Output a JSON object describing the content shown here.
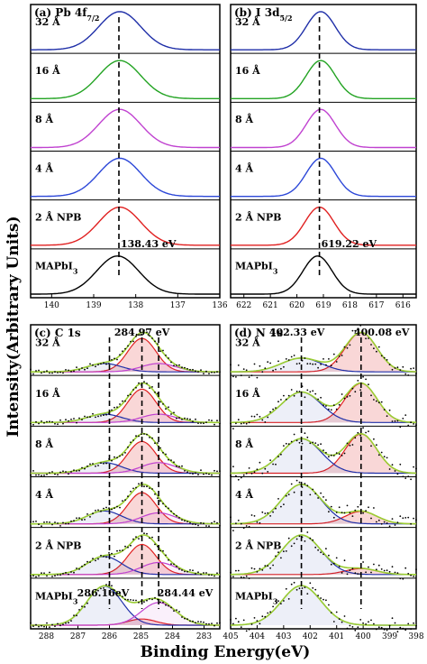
{
  "figure": {
    "ylabel": "Intensity(Arbitrary Units)",
    "xlabel": "Binding Energy(eV)"
  },
  "chart_data": [
    {
      "type": "line",
      "panel": "a",
      "title": "(a) Pb 4f",
      "title_sub": "7/2",
      "xlim": [
        140.5,
        136
      ],
      "x_ticks": [
        140,
        139,
        138,
        137,
        136
      ],
      "row_labels": [
        "32 Å",
        "16 Å",
        "8 Å",
        "4 Å",
        "2 Å NPB",
        "MAPbI3"
      ],
      "peak_positions": [
        138.38,
        138.38,
        138.38,
        138.38,
        138.38,
        138.43
      ],
      "peak_width": 0.5,
      "colors": [
        "#1f2fa8",
        "#22a322",
        "#c042d0",
        "#2c47d8",
        "#e02020",
        "#000000"
      ],
      "dashed_line_x": 138.4,
      "annotation": {
        "text": "138.43 eV",
        "x": 138.4
      }
    },
    {
      "type": "line",
      "panel": "b",
      "title": "(b) I 3d",
      "title_sub": "5/2",
      "xlim": [
        622.5,
        615.5
      ],
      "x_ticks": [
        622,
        621,
        620,
        619,
        618,
        617,
        616
      ],
      "row_labels": [
        "32 Å",
        "16 Å",
        "8 Å",
        "4 Å",
        "2 Å NPB",
        "MAPbI3"
      ],
      "peak_positions": [
        619.1,
        619.1,
        619.1,
        619.1,
        619.15,
        619.22
      ],
      "peak_width": 0.55,
      "colors": [
        "#1f2fa8",
        "#22a322",
        "#c042d0",
        "#2c47d8",
        "#e02020",
        "#000000"
      ],
      "dashed_line_x": 619.15,
      "annotation": {
        "text": "619.22 eV",
        "x": 619.15
      }
    },
    {
      "type": "line",
      "panel": "c",
      "title": "(c) C 1s",
      "xlim": [
        288.5,
        282.5
      ],
      "x_ticks": [
        288,
        287,
        286,
        285,
        284,
        283
      ],
      "row_labels": [
        "32 Å",
        "16 Å",
        "8 Å",
        "4 Å",
        "2 Å NPB",
        "MAPbI3"
      ],
      "components": [
        {
          "name": "",
          "center": 284.97,
          "width": 0.45,
          "color": "#e02020",
          "amps": [
            1.0,
            1.0,
            0.9,
            0.85,
            0.75,
            0.15
          ]
        },
        {
          "name": "",
          "center": 286.16,
          "width": 0.55,
          "color": "#1f2fa8",
          "amps": [
            0.25,
            0.25,
            0.3,
            0.35,
            0.45,
            0.95
          ]
        },
        {
          "name": "",
          "center": 284.44,
          "width": 0.55,
          "color": "#c042d0",
          "amps": [
            0.25,
            0.25,
            0.3,
            0.3,
            0.3,
            0.55
          ]
        }
      ],
      "dashed_lines_x": [
        286.0,
        284.97,
        284.44
      ],
      "annotations": [
        {
          "text": "284.97 eV",
          "x": 284.97,
          "row": 0
        },
        {
          "text": "286.16eV",
          "x": 286.2,
          "row": 5
        },
        {
          "text": "284.44 eV",
          "x": 283.6,
          "row": 5
        }
      ]
    },
    {
      "type": "line",
      "panel": "d",
      "title": "(d) N 1s",
      "xlim": [
        405,
        398
      ],
      "x_ticks": [
        405,
        404,
        403,
        402,
        401,
        400,
        399,
        398
      ],
      "row_labels": [
        "32 Å",
        "16 Å",
        "8 Å",
        "4 Å",
        "2 Å NPB",
        "MAPbI3"
      ],
      "components": [
        {
          "name": "",
          "center": 400.08,
          "width": 0.6,
          "color": "#e02020",
          "amps": [
            1.0,
            0.9,
            0.85,
            0.3,
            0.15,
            0.0
          ]
        },
        {
          "name": "",
          "center": 402.33,
          "width": 0.75,
          "color": "#1f2fa8",
          "amps": [
            0.35,
            0.7,
            0.75,
            0.95,
            1.0,
            1.0
          ]
        }
      ],
      "dashed_lines_x": [
        402.33,
        400.08
      ],
      "annotations": [
        {
          "text": "402.33 eV",
          "x": 402.5,
          "row": 0
        },
        {
          "text": "400.08 eV",
          "x": 399.3,
          "row": 0
        }
      ]
    }
  ]
}
